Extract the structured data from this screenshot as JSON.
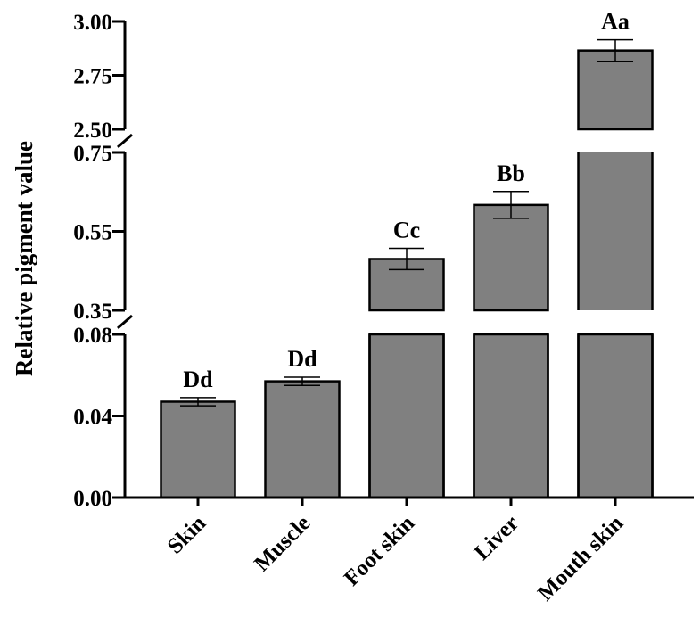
{
  "chart_data": {
    "type": "bar",
    "title": "",
    "xlabel": "",
    "ylabel": "Relative pigment value",
    "broken_axis": true,
    "y_segments": [
      {
        "range": [
          0.0,
          0.08
        ],
        "ticks": [
          "0.00",
          "0.04",
          "0.08"
        ]
      },
      {
        "range": [
          0.35,
          0.75
        ],
        "ticks": [
          "0.35",
          "0.55",
          "0.75"
        ]
      },
      {
        "range": [
          2.5,
          3.0
        ],
        "ticks": [
          "2.50",
          "2.75",
          "3.00"
        ]
      }
    ],
    "categories": [
      "Skin",
      "Muscle",
      "Foot skin",
      "Liver",
      "Mouth skin"
    ],
    "values": [
      0.047,
      0.057,
      0.48,
      0.617,
      2.865
    ],
    "errors": [
      0.002,
      0.002,
      0.027,
      0.034,
      0.05
    ],
    "significance": [
      "Dd",
      "Dd",
      "Cc",
      "Bb",
      "Aa"
    ],
    "bar_color": "#808080",
    "grid": false,
    "legend": "none"
  }
}
